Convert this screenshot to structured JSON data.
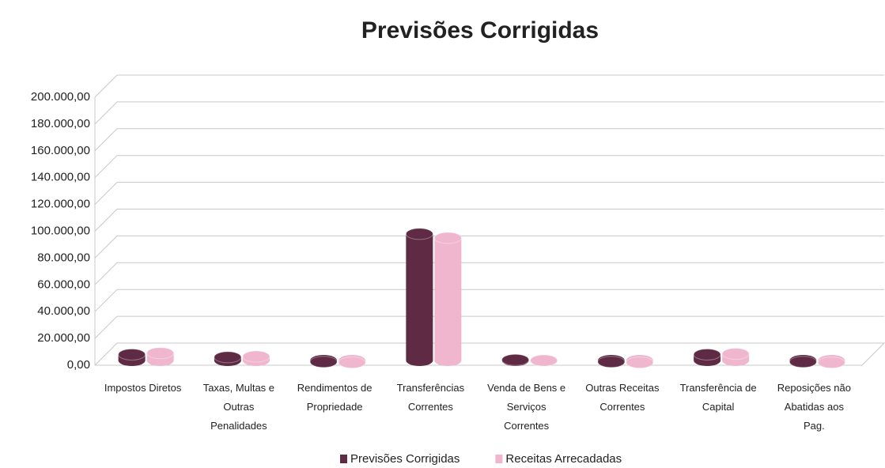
{
  "chart_data": {
    "type": "bar",
    "title": "Previsões Corrigidas",
    "categories": [
      "Impostos Diretos",
      "Taxas, Multas e Outras Penalidades",
      "Rendimentos de Propriedade",
      "Transferências Correntes",
      "Venda de Bens e Serviços Correntes",
      "Outras Receitas Correntes",
      "Transferência de Capital",
      "Reposições não Abatidas aos Pag."
    ],
    "series": [
      {
        "name": "Previsões Corrigidas",
        "color": "#5e2a44",
        "values": [
          8000,
          6000,
          2500,
          98000,
          4000,
          2500,
          8000,
          2500
        ]
      },
      {
        "name": "Receitas Arrecadadas",
        "color": "#f0b6ce",
        "values": [
          9000,
          6500,
          2000,
          95000,
          3500,
          2000,
          8500,
          2000
        ]
      }
    ],
    "ylim": [
      0,
      200000
    ],
    "yticks": [
      {
        "value": 0,
        "label": "0,00"
      },
      {
        "value": 20000,
        "label": "20.000,00"
      },
      {
        "value": 40000,
        "label": "40.000,00"
      },
      {
        "value": 60000,
        "label": "60.000,00"
      },
      {
        "value": 80000,
        "label": "80.000,00"
      },
      {
        "value": 100000,
        "label": "100.000,00"
      },
      {
        "value": 120000,
        "label": "120.000,00"
      },
      {
        "value": 140000,
        "label": "140.000,00"
      },
      {
        "value": 160000,
        "label": "160.000,00"
      },
      {
        "value": 180000,
        "label": "180.000,00"
      },
      {
        "value": 200000,
        "label": "200.000,00"
      }
    ],
    "grid": true,
    "legend": "bottom"
  }
}
